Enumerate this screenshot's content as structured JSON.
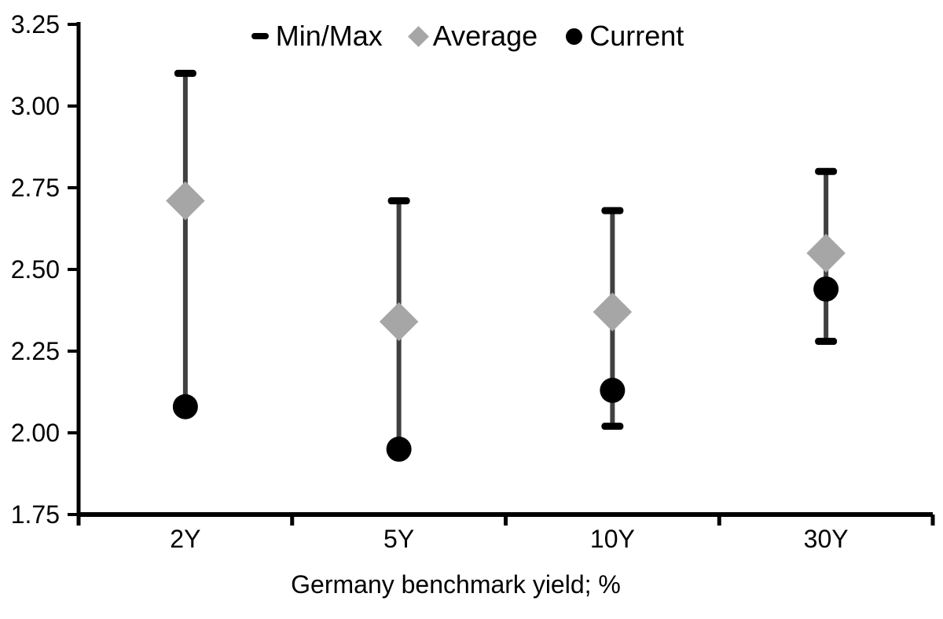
{
  "chart_data": {
    "type": "scatter",
    "subtype": "min-max-range-with-average-and-current",
    "title": "",
    "xlabel": "Germany benchmark yield; %",
    "ylabel": "",
    "ylim": [
      1.75,
      3.25
    ],
    "y_tick_labels": [
      "3.25",
      "3.00",
      "2.75",
      "2.50",
      "2.25",
      "2.00",
      "1.75"
    ],
    "grid": "off",
    "categories": [
      "2Y",
      "5Y",
      "10Y",
      "30Y"
    ],
    "series": [
      {
        "name": "Min/Max",
        "type": "range",
        "min": [
          2.08,
          1.95,
          2.02,
          2.28
        ],
        "max": [
          3.1,
          2.71,
          2.68,
          2.8
        ]
      },
      {
        "name": "Average",
        "type": "point-diamond",
        "values": [
          2.71,
          2.34,
          2.37,
          2.55
        ]
      },
      {
        "name": "Current",
        "type": "point-circle",
        "values": [
          2.08,
          1.95,
          2.13,
          2.44
        ]
      }
    ],
    "legend": {
      "position": "top-center",
      "items": [
        {
          "label": "Min/Max",
          "marker": "dash-icon"
        },
        {
          "label": "Average",
          "marker": "diamond-icon"
        },
        {
          "label": "Current",
          "marker": "circle-icon"
        }
      ]
    },
    "colors": {
      "range_line": "#404040",
      "range_cap": "#000000",
      "average_fill": "#a6a6a6",
      "current_fill": "#000000",
      "axis": "#000000",
      "text": "#000000"
    }
  }
}
